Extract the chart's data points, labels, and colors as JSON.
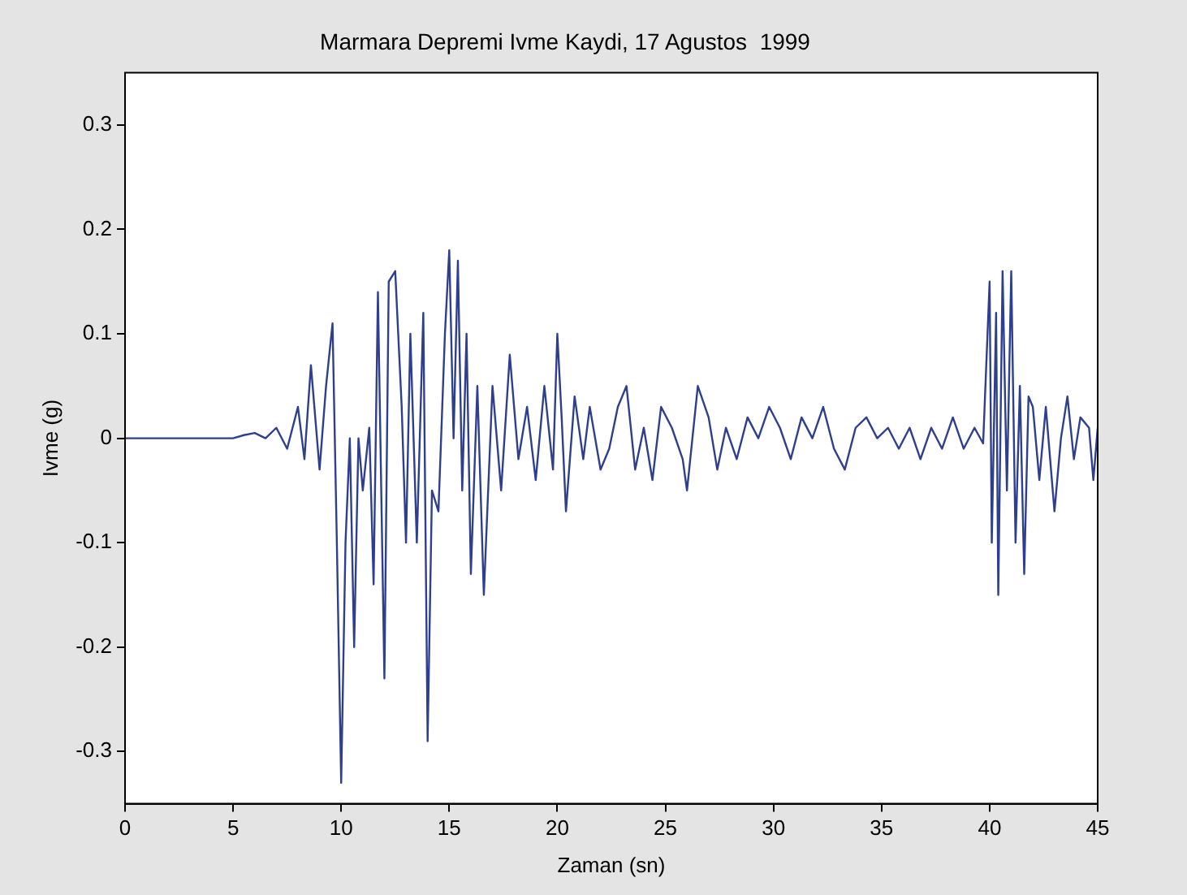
{
  "chart_data": {
    "type": "line",
    "title": "Marmara Depremi Ivme Kaydi, 17 Agustos  1999",
    "xlabel": "Zaman (sn)",
    "ylabel": "Ivme (g)",
    "x": [
      0,
      1,
      2,
      3,
      4,
      5,
      5.5,
      6,
      6.5,
      7,
      7.5,
      8,
      8.3,
      8.6,
      9,
      9.3,
      9.6,
      9.8,
      10,
      10.2,
      10.4,
      10.6,
      10.8,
      11,
      11.3,
      11.5,
      11.7,
      12,
      12.2,
      12.5,
      12.8,
      13,
      13.2,
      13.5,
      13.8,
      14,
      14.2,
      14.5,
      14.8,
      15,
      15.2,
      15.4,
      15.6,
      15.8,
      16,
      16.3,
      16.6,
      17,
      17.4,
      17.8,
      18.2,
      18.6,
      19,
      19.4,
      19.8,
      20,
      20.2,
      20.4,
      20.8,
      21.2,
      21.5,
      22,
      22.4,
      22.8,
      23.2,
      23.6,
      24,
      24.4,
      24.8,
      25.3,
      25.8,
      26,
      26.5,
      27,
      27.4,
      27.8,
      28.3,
      28.8,
      29.3,
      29.8,
      30.3,
      30.8,
      31.3,
      31.8,
      32.3,
      32.8,
      33.3,
      33.8,
      34.3,
      34.8,
      35.3,
      35.8,
      36.3,
      36.8,
      37.3,
      37.8,
      38.3,
      38.8,
      39.3,
      39.7,
      40,
      40.1,
      40.3,
      40.4,
      40.6,
      40.8,
      41,
      41.2,
      41.4,
      41.6,
      41.8,
      42,
      42.3,
      42.6,
      43,
      43.3,
      43.6,
      43.9,
      44.2,
      44.6,
      44.8,
      45
    ],
    "series": [
      {
        "color": "#2e3f8f",
        "values": [
          0,
          0,
          0,
          0,
          0,
          0,
          0.003,
          0.005,
          0,
          0.01,
          -0.01,
          0.03,
          -0.02,
          0.07,
          -0.03,
          0.05,
          0.11,
          -0.1,
          -0.33,
          -0.1,
          0,
          -0.2,
          0,
          -0.05,
          0.01,
          -0.14,
          0.14,
          -0.23,
          0.15,
          0.16,
          0.03,
          -0.1,
          0.1,
          -0.1,
          0.12,
          -0.29,
          -0.05,
          -0.07,
          0.1,
          0.18,
          0,
          0.17,
          -0.05,
          0.1,
          -0.13,
          0.05,
          -0.15,
          0.05,
          -0.05,
          0.08,
          -0.02,
          0.03,
          -0.04,
          0.05,
          -0.03,
          0.1,
          0.02,
          -0.07,
          0.04,
          -0.02,
          0.03,
          -0.03,
          -0.01,
          0.03,
          0.05,
          -0.03,
          0.01,
          -0.04,
          0.03,
          0.01,
          -0.02,
          -0.05,
          0.05,
          0.02,
          -0.03,
          0.01,
          -0.02,
          0.02,
          0,
          0.03,
          0.01,
          -0.02,
          0.02,
          0,
          0.03,
          -0.01,
          -0.03,
          0.01,
          0.02,
          0,
          0.01,
          -0.01,
          0.01,
          -0.02,
          0.01,
          -0.01,
          0.02,
          -0.01,
          0.01,
          -0.005,
          0.15,
          -0.1,
          0.12,
          -0.15,
          0.16,
          -0.05,
          0.16,
          -0.1,
          0.05,
          -0.13,
          0.04,
          0.03,
          -0.04,
          0.03,
          -0.07,
          0,
          0.04,
          -0.02,
          0.02,
          0.01,
          -0.04,
          0.01
        ]
      }
    ],
    "xlim": [
      0,
      45
    ],
    "xticks": [
      0,
      5,
      10,
      15,
      20,
      25,
      30,
      35,
      40,
      45
    ],
    "ylim": [
      -0.35,
      0.35
    ],
    "yticks": [
      -0.3,
      -0.2,
      -0.1,
      0,
      0.1,
      0.2,
      0.3
    ],
    "grid": false,
    "legend": false,
    "marker": "none",
    "line_style": "solid"
  }
}
